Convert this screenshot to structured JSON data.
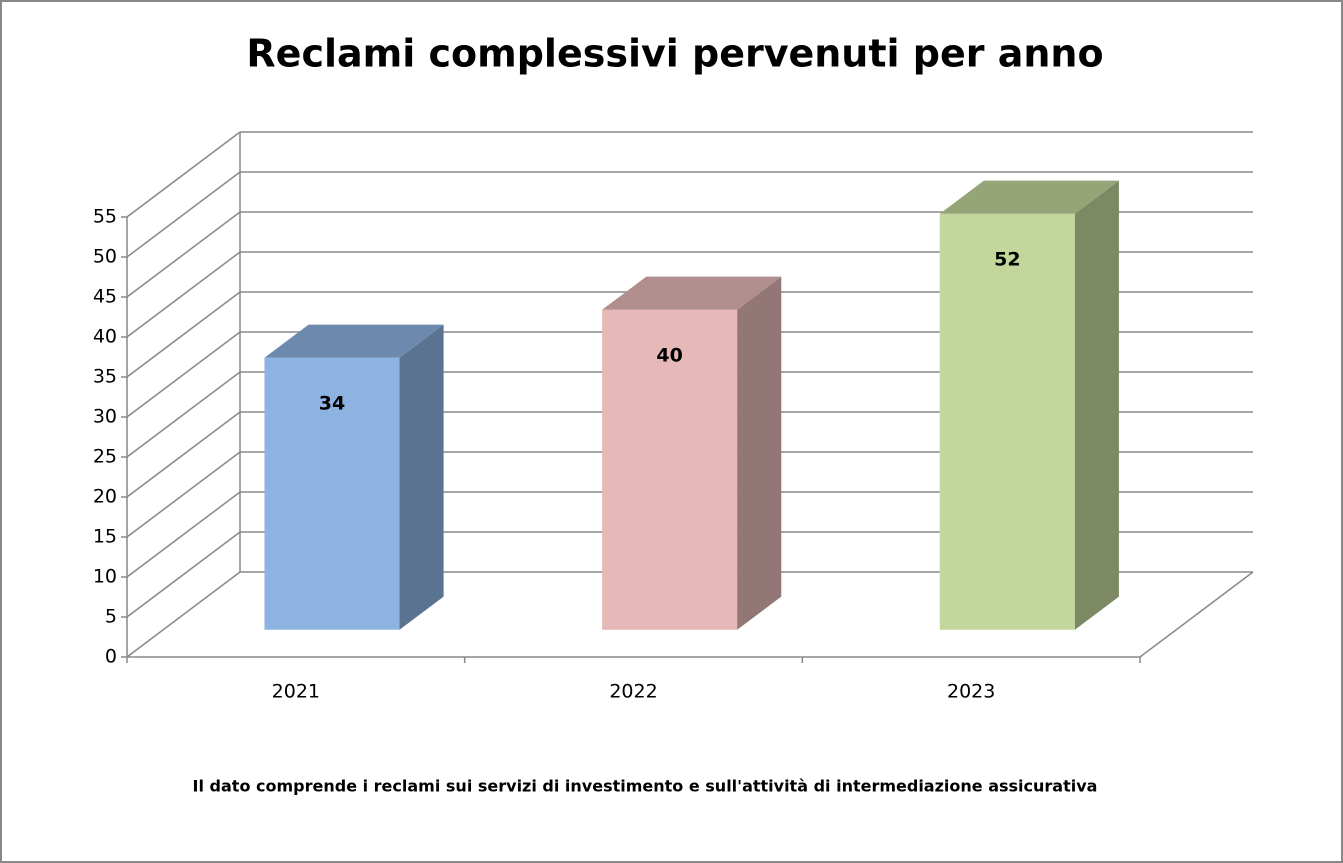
{
  "chart_data": {
    "type": "bar3d",
    "title": "Reclami complessivi pervenuti per anno",
    "categories": [
      "2021",
      "2022",
      "2023"
    ],
    "values": [
      34,
      40,
      52
    ],
    "colors": [
      "#8db3e2",
      "#e6b9b8",
      "#c3d69b"
    ],
    "ylim": [
      0,
      55
    ],
    "yticks": [
      0,
      5,
      10,
      15,
      20,
      25,
      30,
      35,
      40,
      45,
      50,
      55
    ],
    "grid": true,
    "note": "Il dato comprende i reclami sui servizi di investimento e sull'attività di intermediazione assicurativa"
  }
}
